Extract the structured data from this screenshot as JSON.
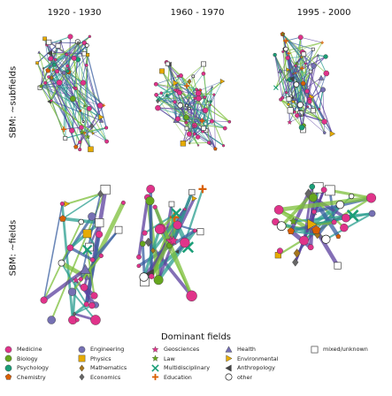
{
  "columns": [
    "1920 - 1930",
    "1960 - 1970",
    "1995 - 2000"
  ],
  "rows": [
    "SBM: ~subfields",
    "SBM: ~fields"
  ],
  "legend_title": "Dominant fields",
  "legend": [
    {
      "label": "Medicine",
      "color": "#e0338a",
      "shape": "circle"
    },
    {
      "label": "Biology",
      "color": "#66a61e",
      "shape": "circle"
    },
    {
      "label": "Psychology",
      "color": "#1b9e77",
      "shape": "circle"
    },
    {
      "label": "Chemistry",
      "color": "#d95f02",
      "shape": "pentagon"
    },
    {
      "label": "Engineering",
      "color": "#7570b3",
      "shape": "circle"
    },
    {
      "label": "Physics",
      "color": "#e6ab02",
      "shape": "square"
    },
    {
      "label": "Mathematics",
      "color": "#a6761d",
      "shape": "diamond"
    },
    {
      "label": "Economics",
      "color": "#666666",
      "shape": "diamond"
    },
    {
      "label": "Geosciences",
      "color": "#e0338a",
      "shape": "star"
    },
    {
      "label": "Law",
      "color": "#66a61e",
      "shape": "star"
    },
    {
      "label": "Multidisciplinary",
      "color": "#1b9e77",
      "shape": "cross"
    },
    {
      "label": "Education",
      "color": "#d95f02",
      "shape": "plus"
    },
    {
      "label": "Health",
      "color": "#7570b3",
      "shape": "triangle-up"
    },
    {
      "label": "Environmental",
      "color": "#e6ab02",
      "shape": "triangle-right"
    },
    {
      "label": "Anthropology",
      "color": "#444444",
      "shape": "triangle-left"
    },
    {
      "label": "other",
      "color": "#ffffff",
      "shape": "circle-open"
    },
    {
      "label": "mixed/unknown",
      "color": "#ffffff",
      "shape": "square-open"
    }
  ],
  "colors": {
    "edge_teal": "#2a9d8f",
    "edge_blue": "#3a5fa0",
    "edge_purple": "#5b3f9e",
    "edge_green": "#7cbf3a"
  }
}
